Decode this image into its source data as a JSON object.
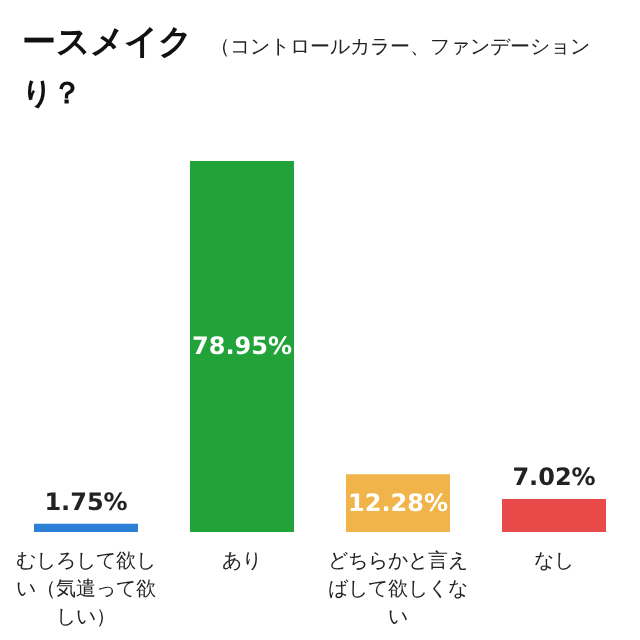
{
  "chart_data": {
    "type": "bar",
    "title": "ースメイク",
    "subtitle": "（コントロールカラー、ファンデーション",
    "annotations": [
      "り？"
    ],
    "categories": [
      "むしろして欲しい（気遣って欲しい）",
      "あり",
      "どちらかと言えばして欲しくない",
      "なし"
    ],
    "values": [
      1.75,
      78.95,
      12.28,
      7.02
    ],
    "colors": [
      "#2b7fd4",
      "#22a33a",
      "#f0b44a",
      "#e84a4a"
    ],
    "value_labels": [
      "1.75%",
      "78.95%",
      "12.28%",
      "7.02%"
    ]
  }
}
